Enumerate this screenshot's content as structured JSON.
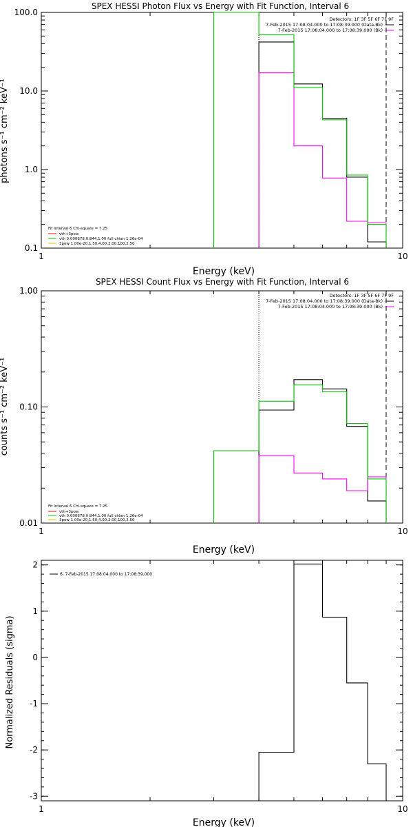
{
  "chart_data": [
    {
      "type": "line",
      "title": "SPEX HESSI Photon Flux vs Energy with Fit Function, Interval 6",
      "xlabel": "Energy (keV)",
      "ylabel": "photons s⁻¹ cm⁻² keV⁻¹",
      "xscale": "log",
      "yscale": "log",
      "xlim": [
        1,
        10
      ],
      "ylim": [
        0.1,
        100
      ],
      "xticks": [
        {
          "value": 1,
          "label": "1"
        },
        {
          "value": 10,
          "label": "10"
        }
      ],
      "yticks": [
        {
          "value": 0.1,
          "label": "0.1"
        },
        {
          "value": 1,
          "label": "1.0"
        },
        {
          "value": 10,
          "label": "10.0"
        },
        {
          "value": 100,
          "label": "100.0"
        }
      ],
      "legend_top": {
        "header": "Detectors: 1F 3F 5F 6F 7F 9F",
        "entries": [
          {
            "text": "7-Feb-2015 17:08:04.000 to 17:08:39.000 (Data-Bk)",
            "color": "#000000"
          },
          {
            "text": "7-Feb-2015 17:08:04.000 to 17:08:39.000 (Bk)",
            "color": "#ff00ff"
          }
        ]
      },
      "legend_bottom": {
        "header": "Fit Interval 6   Chi-square = 7.25",
        "entries": [
          {
            "text": "vth+3pow",
            "color": "#ff0000"
          },
          {
            "text": "vth 0.000678,0.844,1.00  full chian 1.26e-04",
            "color": "#00cc00"
          },
          {
            "text": "3pow 1.00e-20,1.50,4.00,2.00,100,2.50",
            "color": "#e0c000"
          }
        ]
      },
      "vlines": [
        {
          "x": 4.0,
          "style": "dotted",
          "color": "#000000"
        },
        {
          "x": 9.0,
          "style": "dashed",
          "color": "#000000"
        }
      ],
      "series": [
        {
          "name": "",
          "color": "#000000",
          "edges": [
            4,
            5,
            6,
            7,
            8,
            9
          ],
          "values": [
            42,
            12.3,
            4.5,
            0.8,
            0.12
          ]
        },
        {
          "name": "",
          "color": "#ff00ff",
          "edges": [
            4,
            5,
            6,
            7,
            8,
            9
          ],
          "values": [
            17,
            2.0,
            0.78,
            0.22,
            0.21
          ]
        },
        {
          "name": "",
          "color": "#00cc00",
          "edges": [
            3,
            4,
            5,
            6,
            7,
            8,
            9
          ],
          "values": [
            100,
            52,
            11,
            4.3,
            0.85,
            0.2
          ]
        }
      ]
    },
    {
      "type": "line",
      "title": "SPEX HESSI Count Flux vs Energy with Fit Function, Interval 6",
      "xlabel": "Energy (keV)",
      "ylabel": "counts s⁻¹ cm⁻² keV⁻¹",
      "xscale": "log",
      "yscale": "log",
      "xlim": [
        1,
        10
      ],
      "ylim": [
        0.01,
        1
      ],
      "xticks": [
        {
          "value": 1,
          "label": "1"
        },
        {
          "value": 10,
          "label": "10"
        }
      ],
      "yticks": [
        {
          "value": 0.01,
          "label": "0.01"
        },
        {
          "value": 0.1,
          "label": "0.10"
        },
        {
          "value": 1,
          "label": "1.00"
        }
      ],
      "legend_top": {
        "header": "Detectors: 1F 3F 5F 6F 7F 9F",
        "entries": [
          {
            "text": "7-Feb-2015 17:08:04.000 to 17:08:39.000 (Data-Bk)",
            "color": "#000000"
          },
          {
            "text": "7-Feb-2015 17:08:04.000 to 17:08:39.000 (Bk)",
            "color": "#ff00ff"
          }
        ]
      },
      "legend_bottom": {
        "header": "Fit Interval 6   Chi-square = 7.25",
        "entries": [
          {
            "text": "vth+3pow",
            "color": "#ff0000"
          },
          {
            "text": "vth 0.000678,0.844,1.00  full chian 1.26e-04",
            "color": "#00cc00"
          },
          {
            "text": "3pow 1.00e-20,1.50,4.00,2.00,100,2.50",
            "color": "#e0c000"
          }
        ]
      },
      "vlines": [
        {
          "x": 4.0,
          "style": "dotted",
          "color": "#000000"
        },
        {
          "x": 9.0,
          "style": "dashed",
          "color": "#000000"
        }
      ],
      "series": [
        {
          "name": "",
          "color": "#000000",
          "edges": [
            4,
            5,
            6,
            7,
            8,
            9
          ],
          "values": [
            0.094,
            0.172,
            0.143,
            0.068,
            0.0155
          ]
        },
        {
          "name": "",
          "color": "#ff00ff",
          "edges": [
            4,
            5,
            6,
            7,
            8,
            9
          ],
          "values": [
            0.038,
            0.027,
            0.024,
            0.019,
            0.025
          ]
        },
        {
          "name": "",
          "color": "#00cc00",
          "edges": [
            3,
            4,
            5,
            6,
            7,
            8,
            9
          ],
          "values": [
            0.042,
            0.112,
            0.155,
            0.135,
            0.072,
            0.024
          ]
        }
      ]
    },
    {
      "type": "line",
      "title": "",
      "xlabel": "Energy (keV)",
      "ylabel": "Normalized Residuals (sigma)",
      "xscale": "log",
      "yscale": "linear",
      "xlim": [
        1,
        10
      ],
      "ylim": [
        -3.1,
        2.1
      ],
      "xticks": [
        {
          "value": 1,
          "label": "1"
        },
        {
          "value": 10,
          "label": "10"
        }
      ],
      "yticks": [
        {
          "value": -3,
          "label": "-3"
        },
        {
          "value": -2,
          "label": "-2"
        },
        {
          "value": -1,
          "label": "-1"
        },
        {
          "value": 0,
          "label": "0"
        },
        {
          "value": 1,
          "label": "1"
        },
        {
          "value": 2,
          "label": "2"
        }
      ],
      "legend_top_left": {
        "entries": [
          {
            "text": "6.  7-Feb-2015 17:08:04.000 to 17:08:39.000",
            "color": "#000000"
          }
        ]
      },
      "vlines": [],
      "series": [
        {
          "name": "",
          "color": "#000000",
          "edges": [
            4,
            5,
            6,
            7,
            8,
            9
          ],
          "values": [
            -2.05,
            2.02,
            0.87,
            -0.55,
            -2.3
          ]
        }
      ]
    }
  ]
}
